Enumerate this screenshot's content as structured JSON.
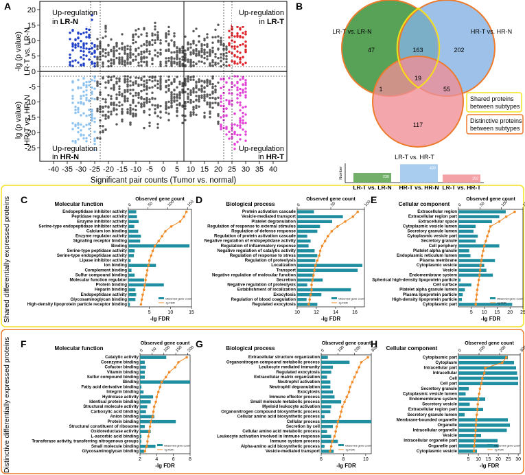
{
  "panel_a": {
    "letter": "A",
    "ylabel_top": [
      "-lg (p value)",
      "LR-T vs. LR-N"
    ],
    "ylabel_bottom": [
      "lg (p value)",
      "HR-T vs. HR-N"
    ],
    "xlabel": "Significant pair counts (Tumor vs. normal)",
    "x_ticks": [
      "-40",
      "-35",
      "-30",
      "-25",
      "-20",
      "-15",
      "-10",
      "-5",
      "0",
      "5",
      "10",
      "15",
      "20",
      "25",
      "30",
      "35",
      "40"
    ],
    "y_ticks_top": [
      "20",
      "15",
      "10",
      "5"
    ],
    "y_ticks_bottom": [
      "0",
      "-5",
      "-10",
      "-15",
      "-20",
      "-25"
    ],
    "annotations": {
      "tl": [
        "Up-regulation",
        "in",
        "LR-N"
      ],
      "tr": [
        "Up-regulation",
        "in",
        "LR-T"
      ],
      "bl": [
        "Up-regulation",
        "in",
        "HR-N"
      ],
      "br": [
        "Up-regulation",
        "in",
        "HR-T"
      ]
    },
    "colors": {
      "grey": "#595959",
      "lr_n": "#1f3fc8",
      "lr_t": "#e0242b",
      "hr_n": "#8fc3ee",
      "hr_t": "#e243d6"
    }
  },
  "panel_b": {
    "letter": "B",
    "sets": [
      "LR-T vs. LR-N",
      "HR-T vs. HR-N",
      "LR-T vs. HR-T"
    ],
    "regions": {
      "lr_only": "47",
      "hr_only": "202",
      "lr_hr": "163",
      "center": "19",
      "lr_t": "1",
      "hr_t": "55",
      "t_only": "117"
    },
    "legend": {
      "shared": [
        "Shared proteins",
        "between subtypes"
      ],
      "distinctive": [
        "Distinctive proteins",
        "between subtypes"
      ]
    },
    "bar": {
      "ylabel": "Number",
      "categories": [
        "LR-T vs. LR-N",
        "HR-T vs. HR-N",
        "LR-T vs. HR-T"
      ],
      "values": [
        230,
        439,
        192
      ],
      "value_labels": [
        "230",
        "439",
        "192"
      ],
      "colors": [
        "#72b06a",
        "#a9cdee",
        "#f3a0a6"
      ]
    },
    "colors": {
      "lr": "#4a9a4a",
      "hr": "#84b2e3",
      "t": "#ef8e96",
      "shared_border": "#f4e21a",
      "distinct_border": "#ee7a2c"
    }
  },
  "side_labels": {
    "shared": "Shared differentially expressed proteins",
    "distinctive": "Distinctive differentially expressed proteins"
  },
  "bar_legend": {
    "gene_count": "Observed gene count",
    "fdr": "-lg FDR"
  },
  "chart_data": [
    {
      "panel": "C",
      "type": "bar",
      "title": "Molecular function",
      "top_axis_label": "Observed gene count",
      "xlabel": "-lg FDR",
      "fdr_ticks": [
        "5",
        "10",
        "15"
      ],
      "fdr_range": [
        0,
        15
      ],
      "count_ticks": [
        "0",
        "50",
        "100",
        "150"
      ],
      "count_range": [
        0,
        160
      ],
      "categories": [
        "Endopeptidase inhibitor activity",
        "Peptidase regulator activity",
        "Enzyme inhibitor activity",
        "Serine-type endopeptidase inhibitor activity",
        "Calcium ion binding",
        "Enzyme regulator activity",
        "Signaling receptor binding",
        "Binding",
        "Serine-type peptidase activity",
        "Serine-type endopeptidase activity",
        "Lipase inhibitor activity",
        "Ion binding",
        "Complement binding",
        "Sulfur compound binding",
        "Molecular function regulator",
        "Protein binding",
        "Heparin binding",
        "Endopeptidase activity",
        "Glycosaminoglycan binding",
        "High-density lipoprotein particle receptor binding"
      ],
      "counts": [
        20,
        22,
        26,
        15,
        25,
        32,
        30,
        155,
        16,
        14,
        6,
        70,
        8,
        16,
        40,
        90,
        18,
        20,
        18,
        4
      ],
      "fdr": [
        13.8,
        13.2,
        12.3,
        10.2,
        8.8,
        8.0,
        7.2,
        6.3,
        5.8,
        5.4,
        5.0,
        4.8,
        4.5,
        4.3,
        4.1,
        3.9,
        3.7,
        3.4,
        3.2,
        3.0
      ]
    },
    {
      "panel": "D",
      "type": "bar",
      "title": "Biological process",
      "top_axis_label": "Observed gene count",
      "xlabel": "-lg FDR",
      "fdr_ticks": [
        "10",
        "12",
        "14",
        "16"
      ],
      "fdr_range": [
        10,
        17
      ],
      "count_ticks": [
        "0",
        "50",
        "100"
      ],
      "count_range": [
        0,
        100
      ],
      "categories": [
        "Protein activation cascade",
        "Vesicle-mediated transport",
        "Platelet degranulation",
        "Regulation of response to external stimulus",
        "Regulation of defense response",
        "Regulation of protein activation cascade",
        "Negative regulation of endopeptidase activity",
        "Regulation of inflammatory response",
        "Negative regulation of catalytic activity",
        "Regulation of response to stress",
        "Regulation of proteolysis",
        "Localization",
        "Transport",
        "Negative regulation of molecular function",
        "Secretion",
        "Negative regulation of proteolysis",
        "Establishment of localization",
        "Exocytosis",
        "Regulation of blood coagulation",
        "Regulated exocytosis"
      ],
      "counts": [
        25,
        68,
        52,
        34,
        30,
        15,
        20,
        17,
        26,
        30,
        27,
        97,
        90,
        25,
        38,
        15,
        80,
        36,
        14,
        30
      ],
      "fdr": [
        16.3,
        15.8,
        15.0,
        14.2,
        13.6,
        13.2,
        12.9,
        12.6,
        12.4,
        12.3,
        12.1,
        11.9,
        11.8,
        11.7,
        11.6,
        11.5,
        11.5,
        11.4,
        11.3,
        11.2
      ]
    },
    {
      "panel": "E",
      "type": "bar",
      "title": "Cellular component",
      "top_axis_label": "Observed gene count",
      "xlabel": "-lg FDR",
      "fdr_ticks": [
        "5",
        "10",
        "15",
        "20",
        "25"
      ],
      "fdr_range": [
        0,
        25
      ],
      "count_ticks": [
        "0",
        "50",
        "100",
        "150"
      ],
      "count_range": [
        0,
        150
      ],
      "categories": [
        "Extracellular region",
        "Extracellular region part",
        "Extracellular space",
        "Cytoplasmic vesicle lumen",
        "Secretory granule lumen",
        "Cytoplasmic vesicle part",
        "Secretory granule",
        "Cell periphery",
        "Platelet alpha granule",
        "Endoplasmic reticulum lumen",
        "Plasma membrane",
        "Cytoplasmic vesicle",
        "Vesicle",
        "Endomembrane system",
        "Spherical high-density lipoprotein particle",
        "Cell surface",
        "Platelet alpha granule lumen",
        "Plasma lipoprotein particle",
        "High-density lipoprotein particle",
        "Cytoplasmic part"
      ],
      "counts": [
        110,
        95,
        78,
        40,
        35,
        45,
        40,
        95,
        25,
        28,
        85,
        60,
        65,
        80,
        5,
        30,
        15,
        10,
        8,
        125
      ],
      "fdr": [
        21.8,
        18.5,
        15.8,
        12.4,
        11.8,
        11.2,
        10.6,
        10.0,
        9.6,
        9.2,
        8.9,
        8.6,
        8.4,
        8.2,
        7.9,
        7.6,
        7.3,
        7.1,
        6.9,
        6.7
      ]
    },
    {
      "panel": "F",
      "type": "bar",
      "title": "Molecular function",
      "top_axis_label": "Observed gene count",
      "xlabel": "-lg FDR",
      "fdr_ticks": [
        "2",
        "4",
        "6",
        "8"
      ],
      "fdr_range": [
        2,
        8
      ],
      "count_ticks": [
        "0",
        "50",
        "100",
        "150",
        "200"
      ],
      "count_range": [
        0,
        210
      ],
      "categories": [
        "Catalytic activity",
        "Coenzyme binding",
        "Cofactor binding",
        "Vitamin binding",
        "Sulfur compound binding",
        "Binding",
        "Fatty acid derivative binding",
        "Integrin binding",
        "Hydrolase activity",
        "Identical protein binding",
        "Structural molecule activity",
        "Carboxylic acid binding",
        "Anion binding",
        "Protein binding",
        "Structural constituent of ribosome",
        "Oxidoreductase activity",
        "L-ascorbic acid binding",
        "Transferase activity, transferring nitrogenous groups",
        "Small molecule binding",
        "Glycosaminoglycan binding"
      ],
      "counts": [
        110,
        20,
        25,
        20,
        20,
        210,
        6,
        15,
        55,
        45,
        30,
        25,
        60,
        150,
        20,
        45,
        6,
        5,
        65,
        18
      ],
      "fdr": [
        7.6,
        6.6,
        6.2,
        5.5,
        5.1,
        4.6,
        4.4,
        4.2,
        4.0,
        3.9,
        3.7,
        3.6,
        3.5,
        3.3,
        3.2,
        3.1,
        3.0,
        2.9,
        2.8,
        2.6
      ]
    },
    {
      "panel": "G",
      "type": "bar",
      "title": "Biological process",
      "top_axis_label": "Observed gene count",
      "xlabel": "-lg FDR",
      "fdr_ticks": [
        "6",
        "8",
        "10"
      ],
      "fdr_range": [
        6,
        10.5
      ],
      "count_ticks": [
        "0",
        "100",
        "200",
        "300"
      ],
      "count_range": [
        0,
        300
      ],
      "categories": [
        "Extracellular structure organization",
        "Organonitrogen compound metabolic process",
        "Leukocyte mediated immunity",
        "Regulated exocytosis",
        "Extracellular matrix organization",
        "Neutrophil activation",
        "Neutrophil degranulation",
        "Exocytosis",
        "Immune effector process",
        "Small molecule metabolic process",
        "Myeloid leukocyte activation",
        "Organonitrogen compound biosynthetic process",
        "Cellular amino acid biosynthetic process",
        "Cellular process",
        "Secretion by cell",
        "Cellular amino acid metabolic process",
        "Leukocyte activation involved in immune response",
        "Immune system process",
        "Alpha-amino acid biosynthetic process",
        "Vesicle-mediated transport"
      ],
      "counts": [
        40,
        170,
        70,
        60,
        35,
        55,
        55,
        70,
        80,
        120,
        60,
        55,
        20,
        300,
        70,
        35,
        60,
        100,
        20,
        75
      ],
      "fdr": [
        10.2,
        9.6,
        9.4,
        9.2,
        9.0,
        8.8,
        8.6,
        8.5,
        8.3,
        8.1,
        7.9,
        7.8,
        7.7,
        7.5,
        7.4,
        7.3,
        7.2,
        7.0,
        6.9,
        6.8
      ]
    },
    {
      "panel": "H",
      "type": "bar",
      "title": "Cellular component",
      "top_axis_label": "Observed gene count",
      "xlabel": "-lg FDR",
      "fdr_ticks": [
        "5",
        "10",
        "15",
        "20",
        "25",
        "30"
      ],
      "fdr_range": [
        0,
        31
      ],
      "count_ticks": [
        "0",
        "100",
        "200",
        "300"
      ],
      "count_range": [
        0,
        300
      ],
      "categories": [
        "Cytoplasmic part",
        "Cytoplasm",
        "Intracellular part",
        "Intracellular",
        "Cell",
        "Cell part",
        "Secretory granule",
        "Cytoplasmic vesicle lumen",
        "Endomembrane system",
        "Secretory vesicle",
        "Extracellular region part",
        "Secretory granule lumen",
        "Membrane-bounded organelle",
        "Organelle",
        "Intracellular organelle",
        "Vesicle",
        "Intracellular organelle part",
        "Organelle part",
        "Cytoplasmic vesicle"
      ],
      "counts": [
        240,
        270,
        280,
        285,
        290,
        290,
        50,
        35,
        130,
        55,
        120,
        30,
        240,
        250,
        235,
        110,
        190,
        195,
        90
      ],
      "fdr": [
        24.0,
        22.0,
        13.5,
        13.0,
        12.0,
        11.5,
        10.8,
        10.4,
        10.0,
        9.7,
        9.5,
        9.2,
        9.0,
        8.8,
        8.6,
        8.4,
        8.2,
        8.0,
        7.8
      ]
    }
  ]
}
